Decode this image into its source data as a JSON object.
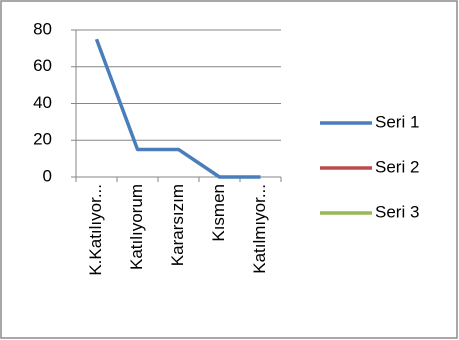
{
  "chart_data": {
    "type": "line",
    "categories": [
      "K.Katılıyor...",
      "Katılıyorum",
      "Kararsızım",
      "Kısmen",
      "Katılmıyor..."
    ],
    "series": [
      {
        "name": "Seri 1",
        "color": "#4a7ebb",
        "values": [
          75,
          15,
          15,
          0,
          0
        ]
      },
      {
        "name": "Seri 2",
        "color": "#be4b48",
        "values": [
          null,
          null,
          null,
          null,
          null
        ]
      },
      {
        "name": "Seri 3",
        "color": "#98b954",
        "values": [
          null,
          null,
          null,
          null,
          null
        ]
      }
    ],
    "ylim": [
      0,
      80
    ],
    "yticks": [
      0,
      20,
      40,
      60,
      80
    ],
    "grid": true,
    "legend": "right"
  }
}
